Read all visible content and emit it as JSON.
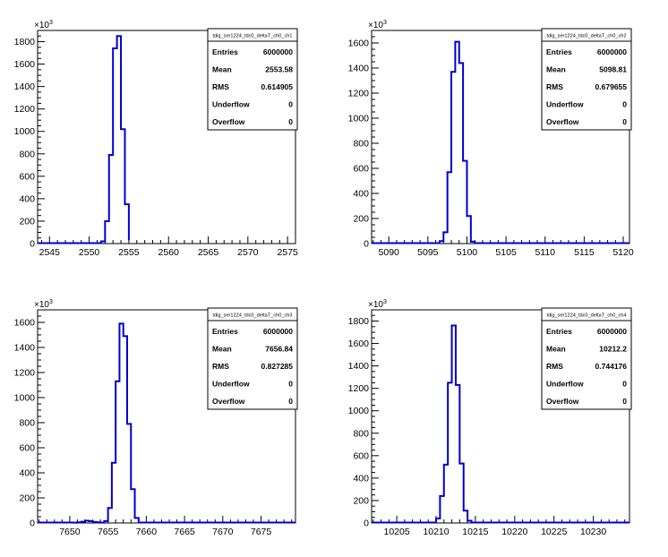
{
  "chart_data": [
    {
      "type": "histogram",
      "title": "tdig_ser1224_tdc0_deltaT_ch0_ch1",
      "xlim": [
        2543.5,
        2576.0
      ],
      "ylim": [
        0,
        1900
      ],
      "y_exponent": "3",
      "xticks": [
        2545,
        2550,
        2555,
        2560,
        2565,
        2570,
        2575
      ],
      "yticks": [
        0,
        200,
        400,
        600,
        800,
        1000,
        1200,
        1400,
        1600,
        1800
      ],
      "bin_edges": [
        2551.5,
        2552,
        2552.5,
        2553,
        2553.5,
        2554,
        2554.5,
        2555
      ],
      "values": [
        20,
        200,
        790,
        1740,
        1850,
        1020,
        350,
        30
      ],
      "stats": {
        "Entries": "6000000",
        "Mean": "2553.58",
        "RMS": "0.614905",
        "Underflow": "0",
        "Overflow": "0"
      }
    },
    {
      "type": "histogram",
      "title": "tdig_ser1224_tdc0_deltaT_ch0_ch2",
      "xlim": [
        5087.8,
        5120.8
      ],
      "ylim": [
        0,
        1700
      ],
      "y_exponent": "3",
      "xticks": [
        5090,
        5095,
        5100,
        5105,
        5110,
        5115,
        5120
      ],
      "yticks": [
        0,
        200,
        400,
        600,
        800,
        1000,
        1200,
        1400,
        1600
      ],
      "bin_edges": [
        5096.5,
        5097,
        5097.5,
        5098,
        5098.5,
        5099,
        5099.5,
        5100,
        5100.5,
        5101
      ],
      "values": [
        20,
        90,
        570,
        1370,
        1610,
        1440,
        660,
        220,
        15
      ],
      "stats": {
        "Entries": "6000000",
        "Mean": "5098.81",
        "RMS": "0.679655",
        "Underflow": "0",
        "Overflow": "0"
      }
    },
    {
      "type": "histogram",
      "title": "tdig_ser1224_tdc0_deltaT_ch0_ch3",
      "xlim": [
        7645.8,
        7679.5
      ],
      "ylim": [
        0,
        1700
      ],
      "y_exponent": "3",
      "xticks": [
        7650,
        7655,
        7660,
        7665,
        7670,
        7675
      ],
      "yticks": [
        0,
        200,
        400,
        600,
        800,
        1000,
        1200,
        1400,
        1600
      ],
      "bin_edges": [
        7650.5,
        7651,
        7651.5,
        7652,
        7652.5,
        7653,
        7653.5,
        7654,
        7654.5,
        7655,
        7655.5,
        7656,
        7656.5,
        7657,
        7657.5,
        7658,
        7658.5,
        7659
      ],
      "values": [
        3,
        5,
        10,
        18,
        14,
        8,
        5,
        3,
        15,
        120,
        480,
        1130,
        1590,
        1490,
        790,
        270,
        40
      ],
      "stats": {
        "Entries": "6000000",
        "Mean": "7656.84",
        "RMS": "0.827285",
        "Underflow": "0",
        "Overflow": "0"
      }
    },
    {
      "type": "histogram",
      "title": "tdig_ser1224_tdc0_deltaT_ch0_ch4",
      "xlim": [
        10201.8,
        10234.6
      ],
      "ylim": [
        0,
        1900
      ],
      "y_exponent": "3",
      "xticks": [
        10205,
        10210,
        10215,
        10220,
        10225,
        10230
      ],
      "yticks": [
        0,
        200,
        400,
        600,
        800,
        1000,
        1200,
        1400,
        1600,
        1800
      ],
      "bin_edges": [
        10210.0,
        10210.5,
        10211,
        10211.5,
        10212,
        10212.5,
        10213,
        10213.5,
        10214,
        10214.5
      ],
      "values": [
        40,
        240,
        520,
        1250,
        1760,
        1230,
        530,
        110,
        20
      ],
      "stats": {
        "Entries": "6000000",
        "Mean": "10212.2",
        "RMS": "0.744176",
        "Underflow": "0",
        "Overflow": "0"
      }
    }
  ],
  "colors": {
    "histogram_line": "#0000cc",
    "frame": "#000000",
    "background": "#ffffff"
  }
}
